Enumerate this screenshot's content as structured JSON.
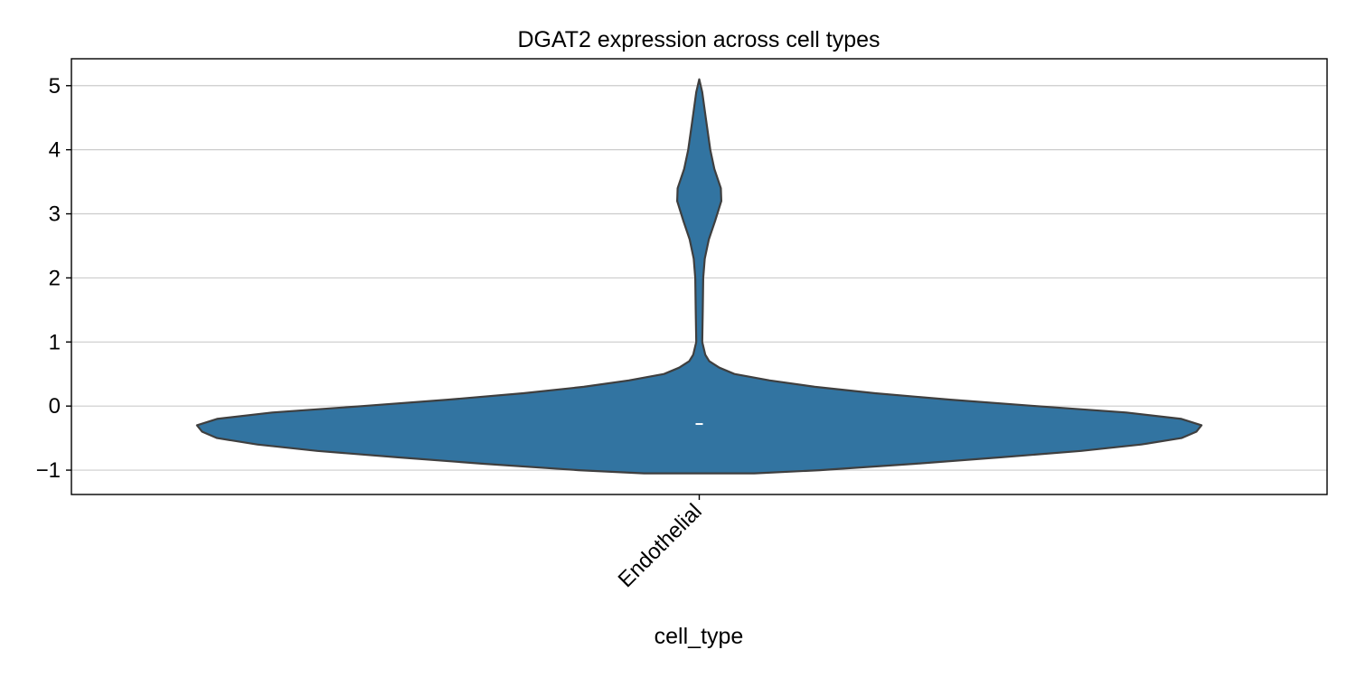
{
  "chart_data": {
    "type": "violin",
    "title": "DGAT2 expression across cell types",
    "xlabel": "cell_type",
    "ylabel": "",
    "categories": [
      "Endothelial"
    ],
    "ylim": [
      -1.38,
      5.42
    ],
    "yticks": [
      -1,
      0,
      1,
      2,
      3,
      4,
      5
    ],
    "ytick_labels": [
      "−1",
      "0",
      "1",
      "2",
      "3",
      "4",
      "5"
    ],
    "grid": "y",
    "legend": "none",
    "series": [
      {
        "category": "Endothelial",
        "color": "#3274a1",
        "edge_color": "#3f3f3f",
        "median": -0.28,
        "min": -1.05,
        "max": 5.1,
        "density_profile": [
          [
            -1.05,
            0.11
          ],
          [
            -1.0,
            0.24
          ],
          [
            -0.9,
            0.43
          ],
          [
            -0.8,
            0.6
          ],
          [
            -0.7,
            0.76
          ],
          [
            -0.6,
            0.88
          ],
          [
            -0.5,
            0.96
          ],
          [
            -0.4,
            0.99
          ],
          [
            -0.3,
            1.0
          ],
          [
            -0.2,
            0.96
          ],
          [
            -0.1,
            0.85
          ],
          [
            0.0,
            0.67
          ],
          [
            0.1,
            0.5
          ],
          [
            0.2,
            0.35
          ],
          [
            0.3,
            0.23
          ],
          [
            0.4,
            0.14
          ],
          [
            0.5,
            0.07
          ],
          [
            0.6,
            0.04
          ],
          [
            0.7,
            0.02
          ],
          [
            0.8,
            0.012
          ],
          [
            1.0,
            0.006
          ],
          [
            1.5,
            0.007
          ],
          [
            2.0,
            0.008
          ],
          [
            2.3,
            0.011
          ],
          [
            2.6,
            0.019
          ],
          [
            2.9,
            0.032
          ],
          [
            3.2,
            0.044
          ],
          [
            3.4,
            0.043
          ],
          [
            3.7,
            0.03
          ],
          [
            4.0,
            0.022
          ],
          [
            4.5,
            0.013
          ],
          [
            4.9,
            0.006
          ],
          [
            5.1,
            0.0
          ]
        ]
      }
    ]
  }
}
